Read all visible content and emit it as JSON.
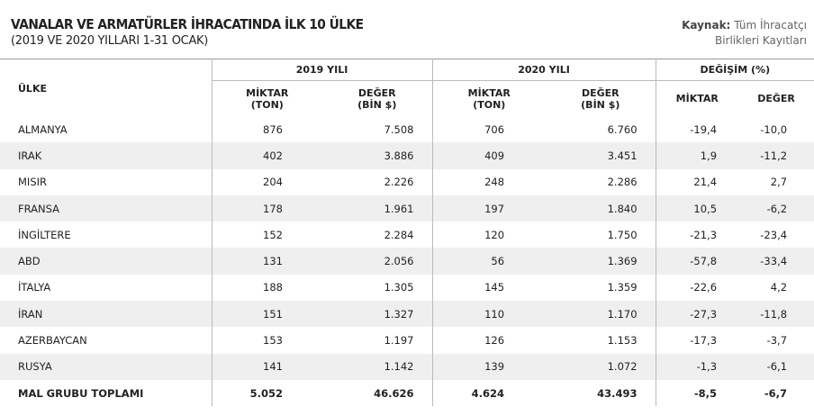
{
  "header": {
    "title": "VANALAR VE ARMATÜRLER İHRACATINDA İLK 10 ÜLKE",
    "subtitle": "(2019 VE 2020 YILLARI 1-31 OCAK)"
  },
  "source": {
    "label": "Kaynak:",
    "lines": [
      "Tüm İhracatçı",
      "Birlikleri Kayıtları"
    ]
  },
  "table": {
    "country_header": "ÜLKE",
    "groups": [
      "2019 YILI",
      "2020 YILI",
      "DEĞİŞİM (%)"
    ],
    "columns": [
      [
        "MİKTAR",
        "(TON)"
      ],
      [
        "DEĞER",
        "(BİN $)"
      ],
      [
        "MİKTAR",
        "(TON)"
      ],
      [
        "DEĞER",
        "(BİN $)"
      ],
      [
        "MİKTAR"
      ],
      [
        "DEĞER"
      ]
    ],
    "rows": [
      [
        "ALMANYA",
        "876",
        "7.508",
        "706",
        "6.760",
        "-19,4",
        "-10,0"
      ],
      [
        "IRAK",
        "402",
        "3.886",
        "409",
        "3.451",
        "1,9",
        "-11,2"
      ],
      [
        "MISIR",
        "204",
        "2.226",
        "248",
        "2.286",
        "21,4",
        "2,7"
      ],
      [
        "FRANSA",
        "178",
        "1.961",
        "197",
        "1.840",
        "10,5",
        "-6,2"
      ],
      [
        "İNGİLTERE",
        "152",
        "2.284",
        "120",
        "1.750",
        "-21,3",
        "-23,4"
      ],
      [
        "ABD",
        "131",
        "2.056",
        "56",
        "1.369",
        "-57,8",
        "-33,4"
      ],
      [
        "İTALYA",
        "188",
        "1.305",
        "145",
        "1.359",
        "-22,6",
        "4,2"
      ],
      [
        "İRAN",
        "151",
        "1.327",
        "110",
        "1.170",
        "-27,3",
        "-11,8"
      ],
      [
        "AZERBAYCAN",
        "153",
        "1.197",
        "126",
        "1.153",
        "-17,3",
        "-3,7"
      ],
      [
        "RUSYA",
        "141",
        "1.142",
        "139",
        "1.072",
        "-1,3",
        "-6,1"
      ]
    ],
    "total": [
      "MAL GRUBU TOPLAMI",
      "5.052",
      "46.626",
      "4.624",
      "43.493",
      "-8,5",
      "-6,7"
    ]
  }
}
